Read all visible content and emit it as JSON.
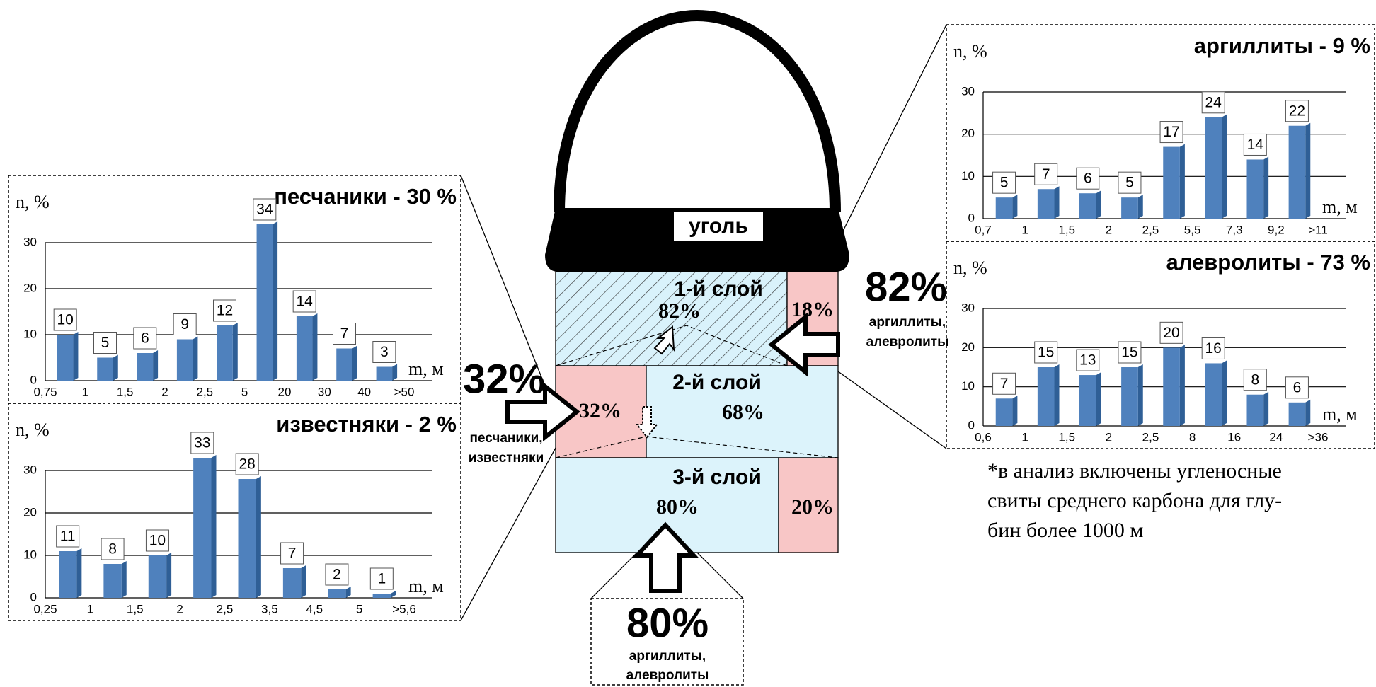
{
  "chart_data": [
    {
      "type": "histogram",
      "title": "песчаники - 30 %",
      "ylabel": "n, %",
      "xlabel": "m, м",
      "bins": [
        "0,75",
        "1",
        "1,5",
        "2",
        "2,5",
        "5",
        "20",
        "30",
        "40",
        ">50"
      ],
      "values": [
        10,
        5,
        6,
        9,
        12,
        34,
        14,
        7,
        3
      ],
      "color": "#4f81bd",
      "ylim": [
        0,
        30
      ],
      "yticks": [
        0,
        10,
        20,
        30
      ],
      "grid": true
    },
    {
      "type": "histogram",
      "title": "известняки - 2 %",
      "ylabel": "n, %",
      "xlabel": "m, м",
      "bins": [
        "0,25",
        "1",
        "1,5",
        "2",
        "2,5",
        "3,5",
        "4,5",
        "5",
        ">5,6"
      ],
      "values": [
        11,
        8,
        10,
        33,
        28,
        7,
        2,
        1
      ],
      "color": "#4f81bd",
      "ylim": [
        0,
        30
      ],
      "yticks": [
        0,
        10,
        20,
        30
      ],
      "grid": true
    },
    {
      "type": "histogram",
      "title": "аргиллиты - 9 %",
      "ylabel": "n, %",
      "xlabel": "m, м",
      "bins": [
        "0,7",
        "1",
        "1,5",
        "2",
        "2,5",
        "5,5",
        "7,3",
        "9,2",
        ">11"
      ],
      "values": [
        5,
        7,
        6,
        5,
        17,
        24,
        14,
        22
      ],
      "color": "#4f81bd",
      "ylim": [
        0,
        30
      ],
      "yticks": [
        0,
        10,
        20,
        30
      ],
      "grid": true
    },
    {
      "type": "histogram",
      "title": "алевролиты - 73 %",
      "ylabel": "n, %",
      "xlabel": "m, м",
      "bins": [
        "0,6",
        "1",
        "1,5",
        "2",
        "2,5",
        "8",
        "16",
        "24",
        ">36"
      ],
      "values": [
        7,
        15,
        13,
        15,
        20,
        16,
        8,
        6
      ],
      "color": "#4f81bd",
      "ylim": [
        0,
        30
      ],
      "yticks": [
        0,
        10,
        20,
        30
      ],
      "grid": true
    }
  ],
  "diagram": {
    "coal": "уголь",
    "layer1": {
      "name": "1-й слой",
      "main": "82%",
      "side": "18%"
    },
    "layer2": {
      "name": "2-й слой",
      "main": "68%",
      "side": "32%"
    },
    "layer3": {
      "name": "3-й слой",
      "main": "80%",
      "side": "20%"
    },
    "right_input": {
      "percent": "82%",
      "line1": "аргиллиты,",
      "line2": "алевролиты"
    },
    "left_input": {
      "percent": "32%",
      "line1": "песчаники,",
      "line2": "известняки"
    },
    "bottom_input": {
      "percent": "80%",
      "line1": "аргиллиты,",
      "line2": "алевролиты"
    },
    "note": [
      "*в анализ включены угленосные",
      "свиты среднего карбона для глу-",
      "бин более 1000 м"
    ]
  }
}
